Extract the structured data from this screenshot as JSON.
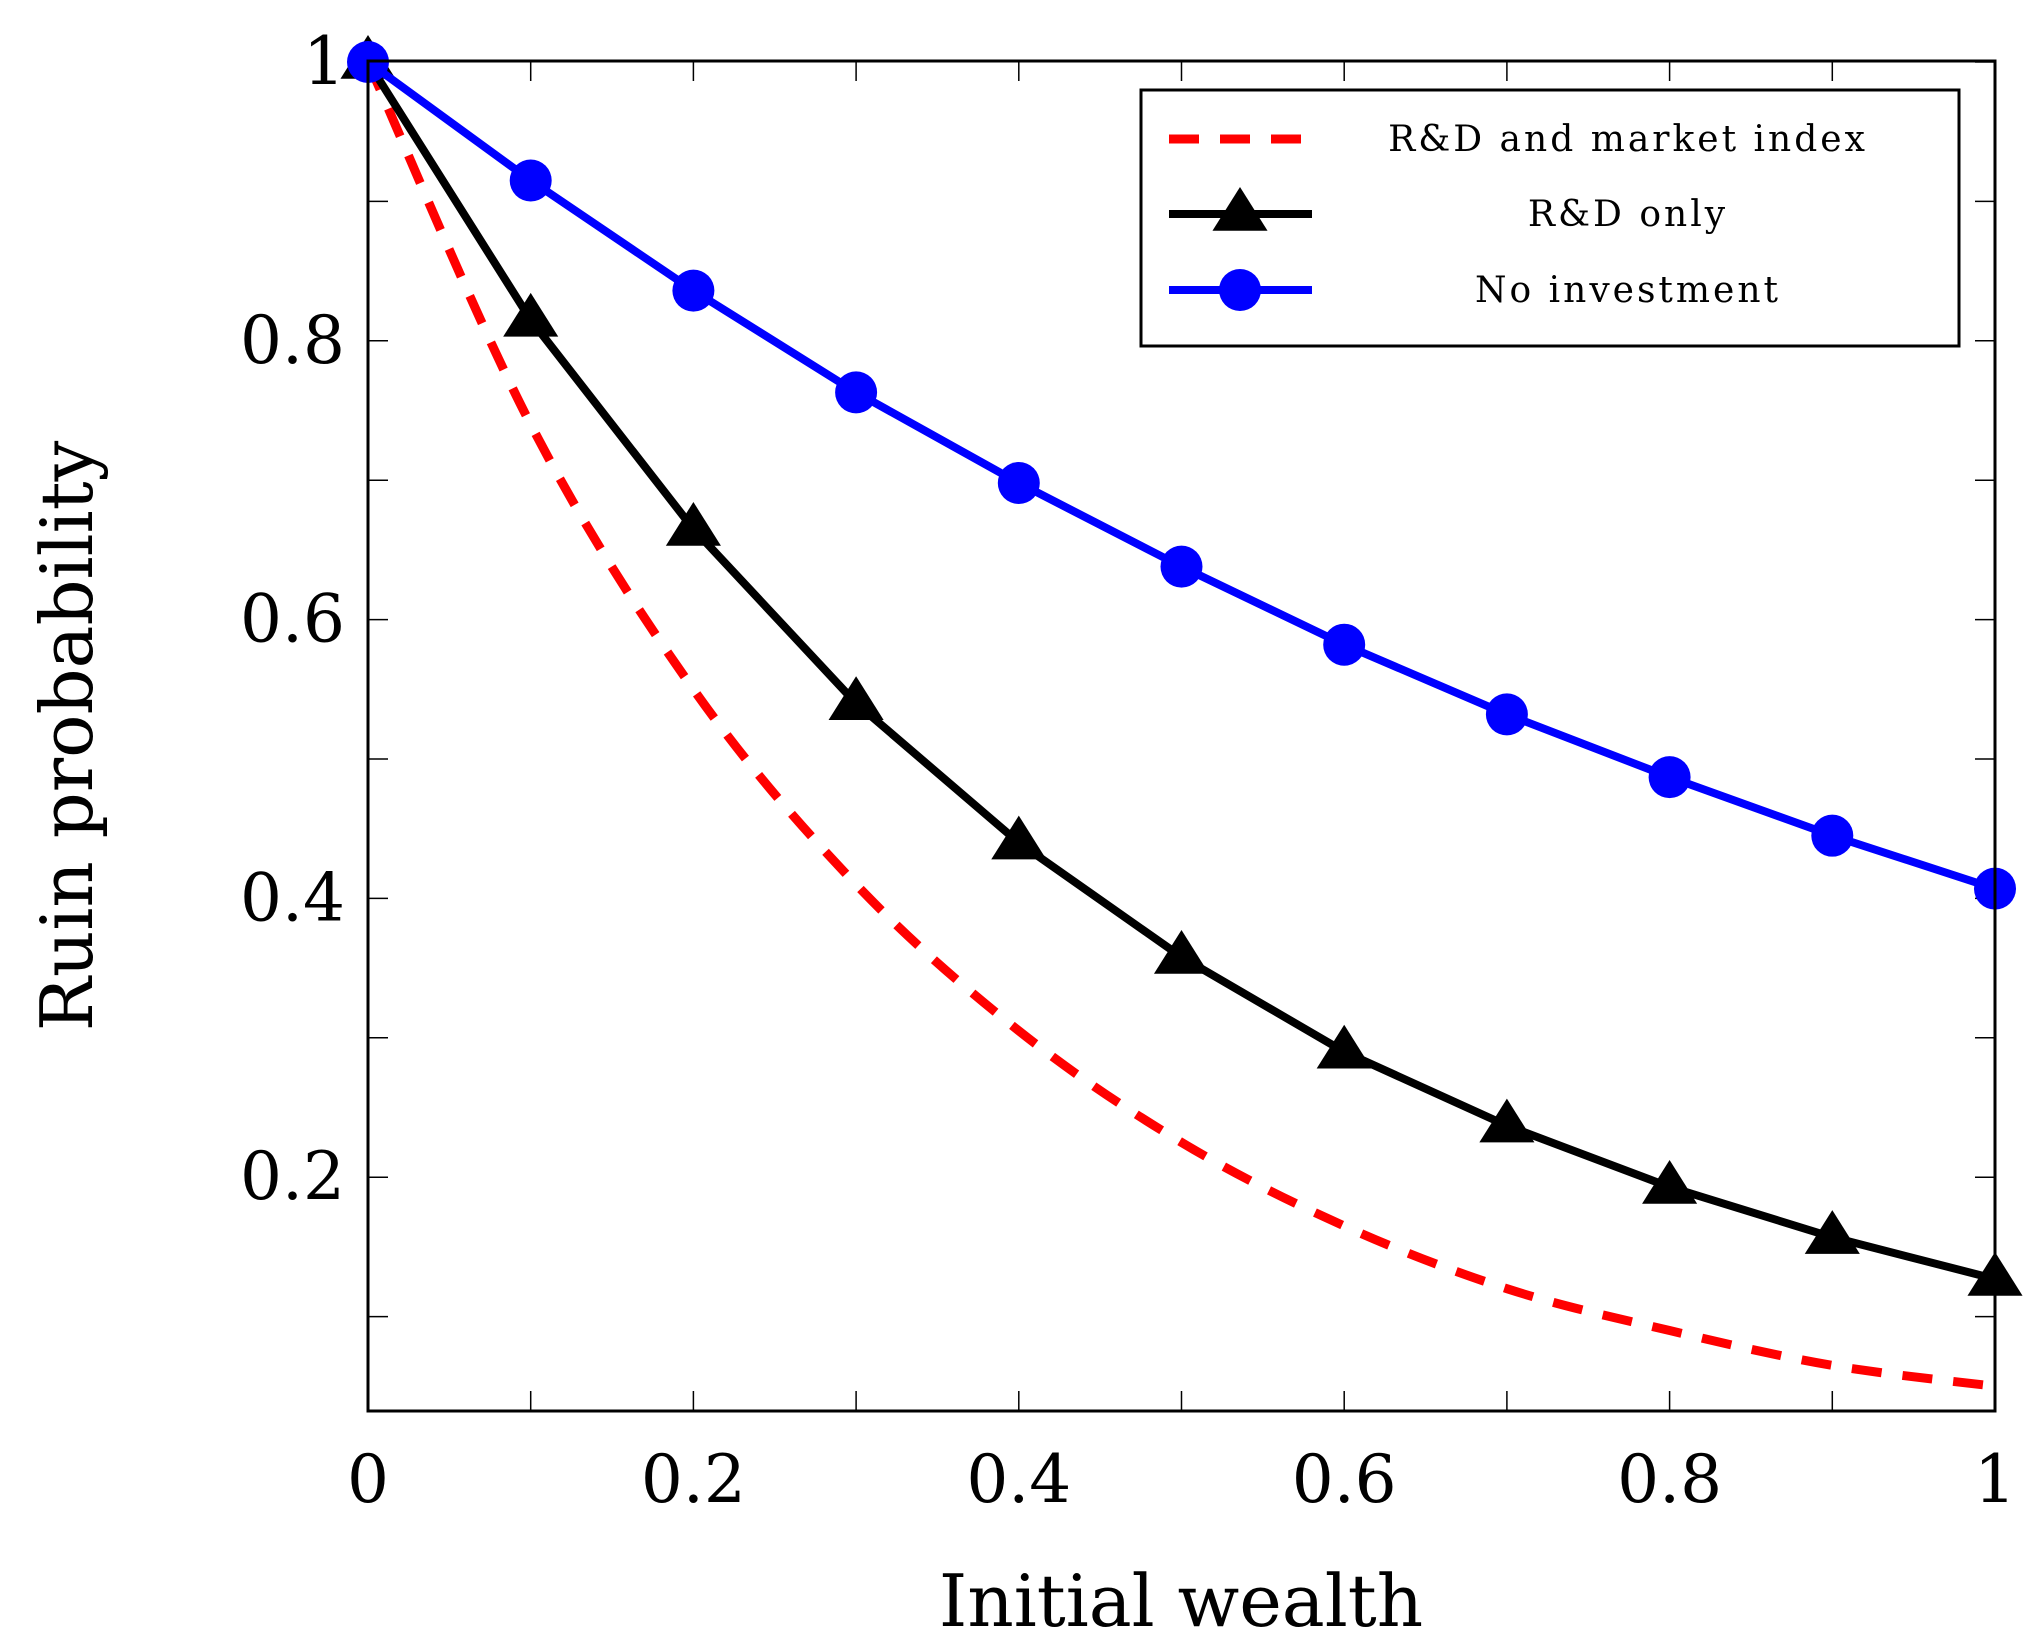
{
  "chart_data": {
    "type": "line",
    "title": "",
    "xlabel": "Initial wealth",
    "ylabel": "Ruin probability",
    "xlim": [
      0,
      1
    ],
    "ylim": [
      0.05,
      1
    ],
    "x_ticks": [
      0,
      0.1,
      0.2,
      0.3,
      0.4,
      0.5,
      0.6,
      0.7,
      0.8,
      0.9,
      1
    ],
    "x_tick_labels": [
      {
        "value": 0,
        "label": "0"
      },
      {
        "value": 0.2,
        "label": "0.2"
      },
      {
        "value": 0.4,
        "label": "0.4"
      },
      {
        "value": 0.6,
        "label": "0.6"
      },
      {
        "value": 0.8,
        "label": "0.8"
      },
      {
        "value": 1,
        "label": "1"
      }
    ],
    "y_ticks": [
      0.1,
      0.2,
      0.3,
      0.4,
      0.5,
      0.6,
      0.7,
      0.8,
      0.9,
      1
    ],
    "y_tick_labels": [
      {
        "value": 0.2,
        "label": "0.2"
      },
      {
        "value": 0.4,
        "label": "0.4"
      },
      {
        "value": 0.6,
        "label": "0.6"
      },
      {
        "value": 0.8,
        "label": "0.8"
      },
      {
        "value": 1,
        "label": "1"
      }
    ],
    "grid": false,
    "legend_position": "top-right",
    "x": [
      0,
      0.1,
      0.2,
      0.3,
      0.4,
      0.5,
      0.6,
      0.7,
      0.8,
      0.9,
      1
    ],
    "series": [
      {
        "name": "R&D and market index",
        "color": "#ff0000",
        "style": "dashed",
        "marker": "none",
        "values": [
          1.0,
          0.74,
          0.55,
          0.41,
          0.305,
          0.225,
          0.165,
          0.12,
          0.09,
          0.065,
          0.05
        ]
      },
      {
        "name": "R&D only",
        "color": "#000000",
        "style": "solid",
        "marker": "triangle",
        "values": [
          1.0,
          0.815,
          0.665,
          0.54,
          0.44,
          0.358,
          0.29,
          0.237,
          0.193,
          0.157,
          0.127
        ]
      },
      {
        "name": "No investment",
        "color": "#0000ff",
        "style": "solid",
        "marker": "circle",
        "values": [
          1.0,
          0.915,
          0.836,
          0.763,
          0.698,
          0.638,
          0.582,
          0.532,
          0.487,
          0.445,
          0.407
        ]
      }
    ]
  }
}
